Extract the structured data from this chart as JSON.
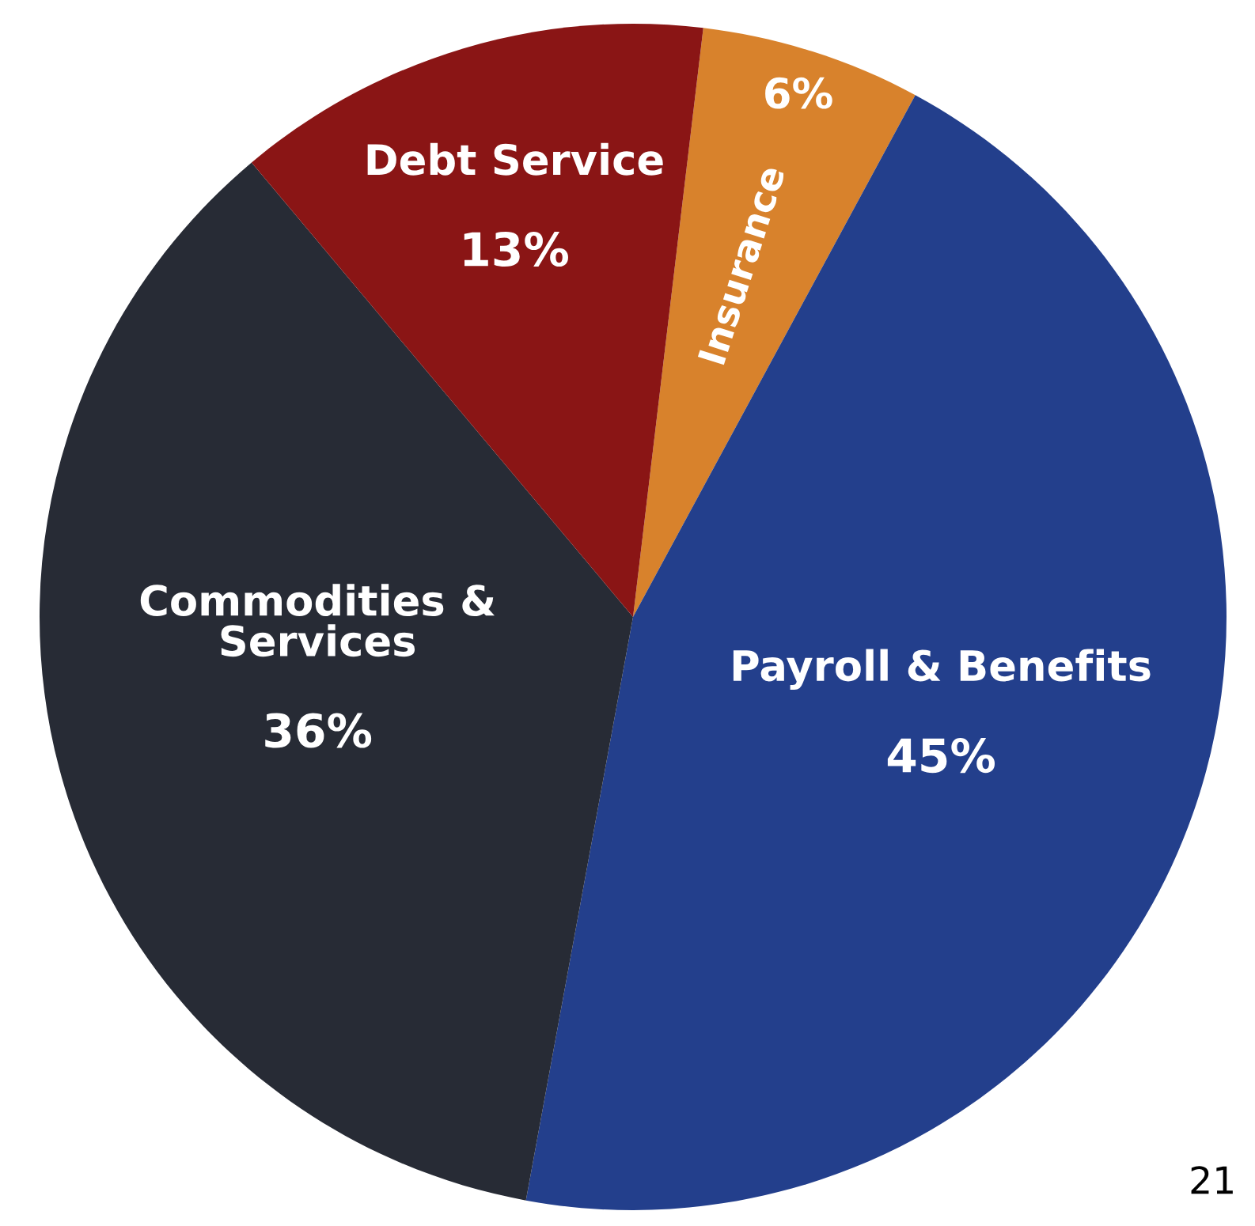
{
  "chart_data": {
    "type": "pie",
    "categories": [
      "Insurance",
      "Payroll & Benefits",
      "Commodities &\nServices",
      "Debt Service"
    ],
    "values": [
      6,
      45,
      36,
      13
    ],
    "colors": [
      "#d8822c",
      "#233f8c",
      "#272b35",
      "#8a1515"
    ],
    "value_labels": [
      "6%",
      "45%",
      "36%",
      "13%"
    ],
    "annotations": [
      "21"
    ]
  }
}
